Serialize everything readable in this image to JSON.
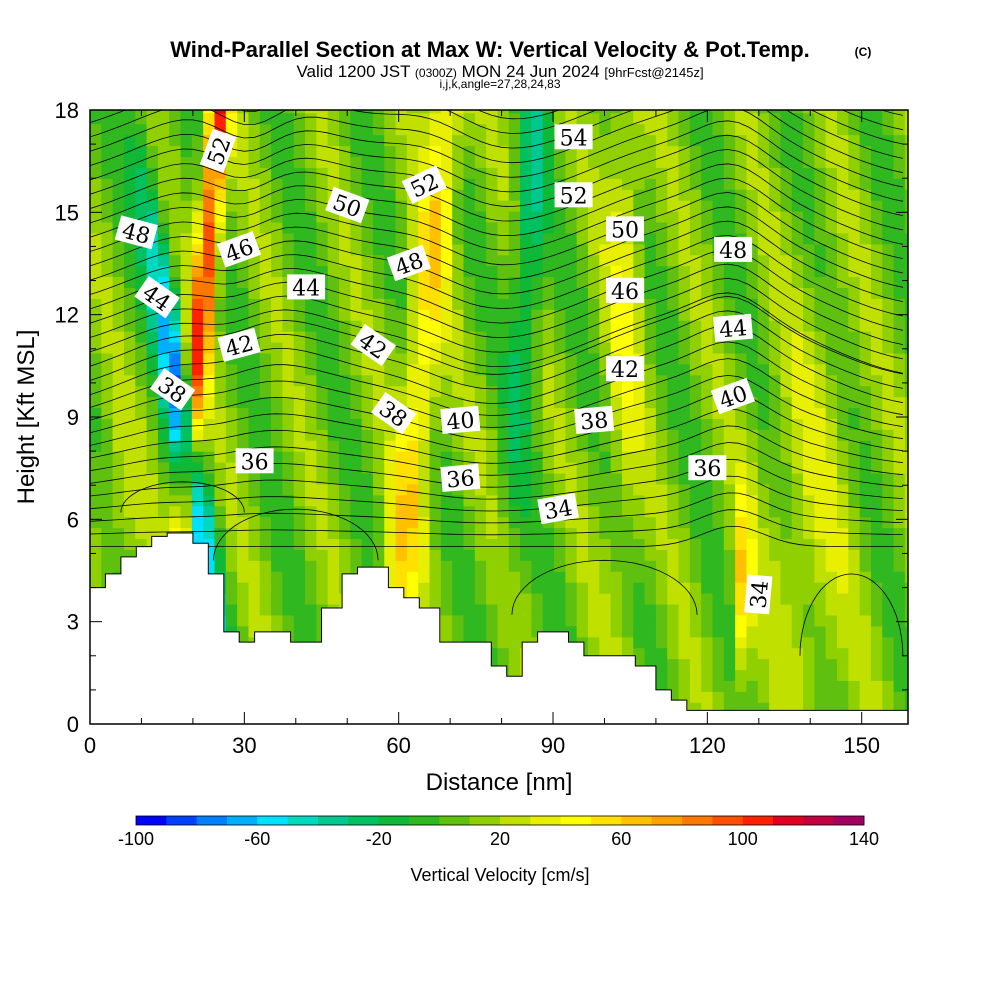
{
  "chart_data": {
    "type": "heatmap",
    "title": "Wind-Parallel Section at Max W: Vertical Velocity & Pot.Temp.",
    "copyright": "(C)",
    "valid_prefix": "Valid 1200 JST",
    "valid_zone": "(0300Z)",
    "valid_date": "MON 24 Jun 2024",
    "valid_fcst": "[9hrFcst@2145z]",
    "ijk_line": "i,j,k,angle=27,28,24,83",
    "xlabel": "Distance [nm]",
    "ylabel": "Height [Kft MSL]",
    "xlim": [
      0,
      159
    ],
    "ylim": [
      0,
      18
    ],
    "x_ticks": [
      0,
      30,
      60,
      90,
      120,
      150
    ],
    "y_ticks": [
      0,
      3,
      6,
      9,
      12,
      15,
      18
    ],
    "x_tick_labels": [
      "0",
      "30",
      "60",
      "90",
      "120",
      "150"
    ],
    "y_tick_labels": [
      "0",
      "3",
      "6",
      "9",
      "12",
      "15",
      "18"
    ],
    "colorbar": {
      "label": "Vertical Velocity [cm/s]",
      "range": [
        -100,
        140
      ],
      "step": 10,
      "tick_values": [
        -100,
        -60,
        -20,
        20,
        60,
        100,
        140
      ],
      "tick_labels": [
        "-100",
        "-60",
        "-20",
        "20",
        "60",
        "100",
        "140"
      ],
      "colors": [
        "#0000ff",
        "#0040ff",
        "#0080ff",
        "#00b0ff",
        "#00e0ff",
        "#00d8c0",
        "#00c890",
        "#00c060",
        "#10b838",
        "#30b820",
        "#60c010",
        "#90d000",
        "#c0e000",
        "#e8f000",
        "#ffff00",
        "#ffe000",
        "#ffc000",
        "#ffa000",
        "#ff7800",
        "#ff5000",
        "#ff2000",
        "#e00020",
        "#c00040",
        "#a00060",
        "#800080",
        "#600090"
      ]
    },
    "terrain": [
      [
        0,
        4.0
      ],
      [
        3,
        4.0
      ],
      [
        3,
        4.4
      ],
      [
        6,
        4.4
      ],
      [
        6,
        4.9
      ],
      [
        9,
        4.9
      ],
      [
        9,
        5.2
      ],
      [
        12,
        5.2
      ],
      [
        12,
        5.5
      ],
      [
        15,
        5.5
      ],
      [
        15,
        5.6
      ],
      [
        20,
        5.6
      ],
      [
        20,
        5.3
      ],
      [
        23,
        5.3
      ],
      [
        23,
        4.4
      ],
      [
        26,
        4.4
      ],
      [
        26,
        2.7
      ],
      [
        29,
        2.7
      ],
      [
        29,
        2.4
      ],
      [
        32,
        2.4
      ],
      [
        32,
        2.7
      ],
      [
        39,
        2.7
      ],
      [
        39,
        2.4
      ],
      [
        45,
        2.4
      ],
      [
        45,
        3.4
      ],
      [
        49,
        3.4
      ],
      [
        49,
        4.4
      ],
      [
        52,
        4.4
      ],
      [
        52,
        4.6
      ],
      [
        58,
        4.6
      ],
      [
        58,
        4.0
      ],
      [
        61,
        4.0
      ],
      [
        61,
        3.7
      ],
      [
        64,
        3.7
      ],
      [
        64,
        3.4
      ],
      [
        68,
        3.4
      ],
      [
        68,
        2.4
      ],
      [
        78,
        2.4
      ],
      [
        78,
        1.7
      ],
      [
        81,
        1.7
      ],
      [
        81,
        1.4
      ],
      [
        84,
        1.4
      ],
      [
        84,
        2.4
      ],
      [
        87,
        2.4
      ],
      [
        87,
        2.7
      ],
      [
        93,
        2.7
      ],
      [
        93,
        2.4
      ],
      [
        96,
        2.4
      ],
      [
        96,
        2.0
      ],
      [
        106,
        2.0
      ],
      [
        106,
        1.7
      ],
      [
        110,
        1.7
      ],
      [
        110,
        1.0
      ],
      [
        113,
        1.0
      ],
      [
        113,
        0.7
      ],
      [
        116,
        0.7
      ],
      [
        116,
        0.4
      ],
      [
        159,
        0.4
      ]
    ],
    "contour_labels": [
      {
        "value": "52",
        "x": 25,
        "y": 16.8,
        "angle": -70
      },
      {
        "value": "54",
        "x": 94,
        "y": 17.2,
        "angle": 0
      },
      {
        "value": "52",
        "x": 65,
        "y": 15.8,
        "angle": -25
      },
      {
        "value": "52",
        "x": 94,
        "y": 15.5,
        "angle": 0
      },
      {
        "value": "50",
        "x": 50,
        "y": 15.2,
        "angle": 20
      },
      {
        "value": "50",
        "x": 104,
        "y": 14.5,
        "angle": 0
      },
      {
        "value": "48",
        "x": 9,
        "y": 14.4,
        "angle": 15
      },
      {
        "value": "48",
        "x": 125,
        "y": 13.9,
        "angle": 0
      },
      {
        "value": "48",
        "x": 62,
        "y": 13.5,
        "angle": -20
      },
      {
        "value": "46",
        "x": 29,
        "y": 13.9,
        "angle": -20
      },
      {
        "value": "46",
        "x": 104,
        "y": 12.7,
        "angle": 0
      },
      {
        "value": "44",
        "x": 42,
        "y": 12.8,
        "angle": 0
      },
      {
        "value": "44",
        "x": 13,
        "y": 12.5,
        "angle": 35
      },
      {
        "value": "44",
        "x": 125,
        "y": 11.6,
        "angle": -5
      },
      {
        "value": "42",
        "x": 29,
        "y": 11.1,
        "angle": -15
      },
      {
        "value": "42",
        "x": 55,
        "y": 11.1,
        "angle": 35
      },
      {
        "value": "42",
        "x": 104,
        "y": 10.4,
        "angle": 0
      },
      {
        "value": "40",
        "x": 125,
        "y": 9.6,
        "angle": -20
      },
      {
        "value": "40",
        "x": 72,
        "y": 8.9,
        "angle": -5
      },
      {
        "value": "38",
        "x": 16,
        "y": 9.8,
        "angle": 35
      },
      {
        "value": "38",
        "x": 59,
        "y": 9.1,
        "angle": 35
      },
      {
        "value": "38",
        "x": 98,
        "y": 8.9,
        "angle": -5
      },
      {
        "value": "36",
        "x": 32,
        "y": 7.7,
        "angle": 0
      },
      {
        "value": "36",
        "x": 120,
        "y": 7.5,
        "angle": 0
      },
      {
        "value": "36",
        "x": 72,
        "y": 7.2,
        "angle": -5
      },
      {
        "value": "34",
        "x": 91,
        "y": 6.3,
        "angle": -10
      },
      {
        "value": "34",
        "x": 130,
        "y": 3.8,
        "angle": -85
      }
    ]
  }
}
